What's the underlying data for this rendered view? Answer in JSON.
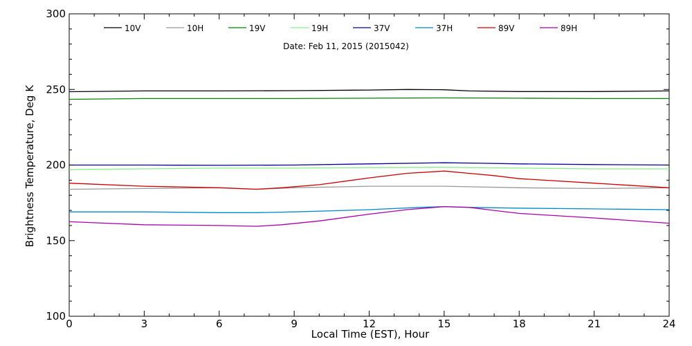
{
  "chart_data": {
    "type": "line",
    "title": "",
    "annotation": "Date: Feb 11, 2015 (2015042)",
    "xlabel": "Local Time (EST), Hour",
    "ylabel": "Brightness Temperature, Deg K",
    "xlim": [
      0,
      24
    ],
    "ylim": [
      100,
      300
    ],
    "xticks": [
      0,
      3,
      6,
      9,
      12,
      15,
      18,
      21,
      24
    ],
    "yticks": [
      100,
      150,
      200,
      250,
      300
    ],
    "grid": false,
    "legend_position": "top",
    "series": [
      {
        "name": "10V",
        "color": "#000000",
        "x": [
          0,
          3,
          6,
          9,
          12,
          13.5,
          15,
          16,
          18,
          21,
          24
        ],
        "y": [
          248.5,
          249,
          249,
          249.2,
          249.6,
          250,
          249.8,
          249,
          248.6,
          248.6,
          249
        ]
      },
      {
        "name": "10H",
        "color": "#999999",
        "x": [
          0,
          3,
          6,
          7.5,
          9,
          12,
          15,
          18,
          21,
          24
        ],
        "y": [
          184,
          184.5,
          185,
          184,
          185,
          186,
          186,
          185,
          184.5,
          185
        ]
      },
      {
        "name": "19V",
        "color": "#008800",
        "x": [
          0,
          3,
          6,
          9,
          12,
          15,
          18,
          21,
          24
        ],
        "y": [
          243.5,
          244,
          244,
          244,
          244.2,
          244.4,
          244.2,
          244,
          244
        ]
      },
      {
        "name": "19H",
        "color": "#88ee88",
        "x": [
          0,
          3,
          6,
          9,
          12,
          15,
          18,
          21,
          24
        ],
        "y": [
          197,
          197.5,
          198,
          198,
          198.3,
          198.5,
          198,
          197.5,
          197.5
        ]
      },
      {
        "name": "37V",
        "color": "#000099",
        "x": [
          0,
          3,
          6,
          9,
          12,
          15,
          16.5,
          18,
          21,
          24
        ],
        "y": [
          200,
          200,
          199.8,
          200,
          200.8,
          201.5,
          201.2,
          200.8,
          200.3,
          200
        ]
      },
      {
        "name": "37H",
        "color": "#0088cc",
        "x": [
          0,
          3,
          6,
          7.5,
          9,
          12,
          14,
          15,
          16,
          18,
          21,
          24
        ],
        "y": [
          169,
          169,
          168.5,
          168.5,
          169,
          170.5,
          172,
          172.5,
          172,
          171.5,
          171,
          170.5
        ]
      },
      {
        "name": "89V",
        "color": "#cc0000",
        "x": [
          0,
          3,
          6,
          7.5,
          8.5,
          10,
          12,
          13.5,
          15,
          16,
          17,
          18,
          21,
          24
        ],
        "y": [
          188,
          186,
          185,
          184,
          185,
          187,
          191.5,
          194.5,
          196,
          194.5,
          193,
          191,
          188,
          185
        ]
      },
      {
        "name": "89H",
        "color": "#aa00aa",
        "x": [
          0,
          3,
          6,
          7.5,
          8.5,
          10,
          12,
          13.5,
          15,
          16,
          17,
          18,
          21,
          24
        ],
        "y": [
          162.5,
          160.5,
          160,
          159.5,
          160.5,
          163,
          167.5,
          170.5,
          172.5,
          172,
          170,
          168,
          165,
          161.5
        ]
      }
    ]
  }
}
